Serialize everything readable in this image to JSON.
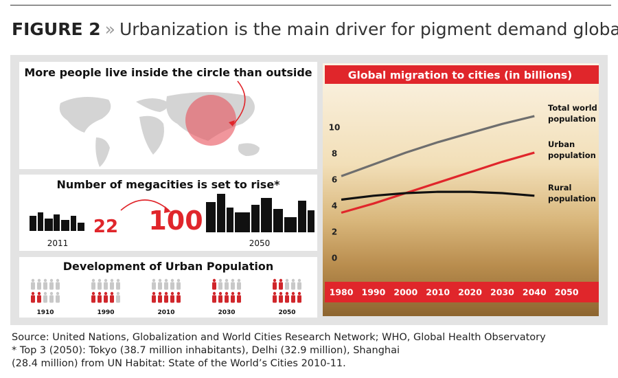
{
  "header": {
    "label": "FIGURE 2",
    "separator": "»",
    "title": "Urbanization is the main driver for pigment demand globally."
  },
  "panels": {
    "circle": {
      "title": "More people live inside the circle than outside"
    },
    "megacities": {
      "title": "Number of megacities is set to rise*",
      "from_year": "2011",
      "from_value": 22,
      "to_year": "2050",
      "to_value": 100
    },
    "urban_development": {
      "title": "Development of Urban Population",
      "years": [
        "1910",
        "1990",
        "2010",
        "2030",
        "2050"
      ],
      "red_figures": [
        2,
        4,
        5,
        6,
        7
      ]
    }
  },
  "chart_data": {
    "type": "line",
    "title": "Global migration to cities (in billions)",
    "x": [
      1980,
      1990,
      2000,
      2010,
      2020,
      2030,
      2040
    ],
    "xlim": [
      1975,
      2055
    ],
    "xticks": [
      1980,
      1990,
      2000,
      2010,
      2020,
      2030,
      2040,
      2050
    ],
    "ylim": [
      -1,
      12
    ],
    "yticks": [
      0,
      2,
      4,
      6,
      8,
      10
    ],
    "series": [
      {
        "name": "Total world population",
        "color": "#6e6e6e",
        "values": [
          6.3,
          7.2,
          8.1,
          8.9,
          9.6,
          10.3,
          10.9
        ]
      },
      {
        "name": "Urban population",
        "color": "#e0262b",
        "values": [
          3.5,
          4.2,
          5.0,
          5.8,
          6.6,
          7.4,
          8.1
        ]
      },
      {
        "name": "Rural population",
        "color": "#111111",
        "values": [
          4.5,
          4.8,
          5.0,
          5.1,
          5.1,
          5.0,
          4.8
        ]
      }
    ]
  },
  "source": [
    "Source: United Nations, Globalization and World Cities Research Network; WHO, Global Health Observatory",
    "* Top 3 (2050): Tokyo (38.7 million inhabitants), Delhi (32.9 million), Shanghai",
    "(28.4 million) from UN Habitat: State of the World’s Cities 2010-11."
  ]
}
